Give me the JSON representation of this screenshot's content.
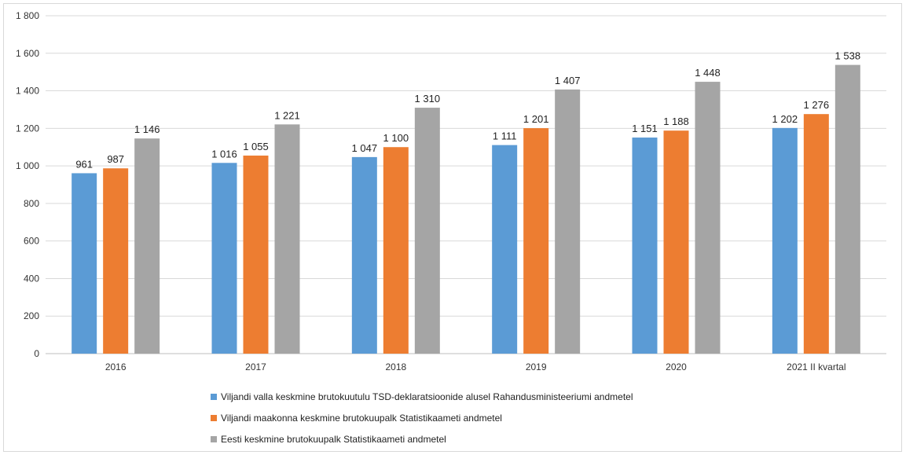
{
  "chart_data": {
    "type": "bar",
    "categories": [
      "2016",
      "2017",
      "2018",
      "2019",
      "2020",
      "2021 II kvartal"
    ],
    "series": [
      {
        "name": "Viljandi valla keskmine brutokuutulu TSD-deklaratsioonide alusel Rahandusministeeriumi andmetel",
        "color": "#5b9bd5",
        "values": [
          961,
          1016,
          1047,
          1111,
          1151,
          1202
        ],
        "labels": [
          "961",
          "1 016",
          "1 047",
          "1 111",
          "1 151",
          "1 202"
        ]
      },
      {
        "name": "Viljandi maakonna keskmine brutokuupalk Statistikaameti andmetel",
        "color": "#ed7d31",
        "values": [
          987,
          1055,
          1100,
          1201,
          1188,
          1276
        ],
        "labels": [
          "987",
          "1 055",
          "1 100",
          "1 201",
          "1 188",
          "1 276"
        ]
      },
      {
        "name": "Eesti keskmine brutokuupalk Statistikaameti andmetel",
        "color": "#a5a5a5",
        "values": [
          1146,
          1221,
          1310,
          1407,
          1448,
          1538
        ],
        "labels": [
          "1 146",
          "1 221",
          "1 310",
          "1 407",
          "1 448",
          "1 538"
        ]
      }
    ],
    "ylim": [
      0,
      1800
    ],
    "yticks": [
      0,
      200,
      400,
      600,
      800,
      1000,
      1200,
      1400,
      1600,
      1800
    ],
    "ytick_labels": [
      "0",
      "200",
      "400",
      "600",
      "800",
      "1 000",
      "1 200",
      "1 400",
      "1 600",
      "1 800"
    ],
    "grid": true,
    "legend_position": "bottom"
  }
}
